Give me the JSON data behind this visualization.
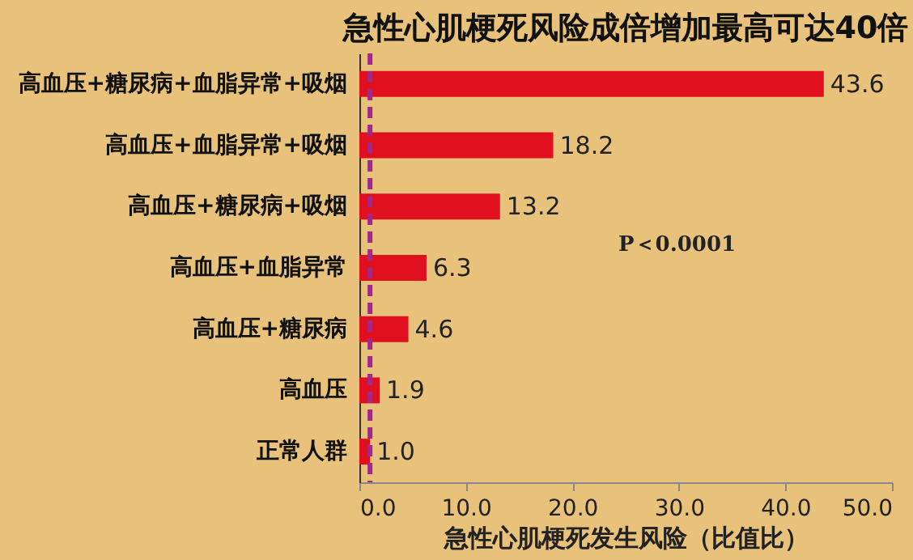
{
  "chart_data": {
    "type": "bar",
    "orientation": "horizontal",
    "title": "急性心肌梗死风险成倍增加最高可达40倍",
    "xlabel": "急性心肌梗死发生风险（比值比）",
    "categories": [
      "高血压+糖尿病+血脂异常+吸烟",
      "高血压+血脂异常+吸烟",
      "高血压+糖尿病+吸烟",
      "高血压+血脂异常",
      "高血压+糖尿病",
      "高血压",
      "正常人群"
    ],
    "values": [
      43.6,
      18.2,
      13.2,
      6.3,
      4.6,
      1.9,
      1.0
    ],
    "value_labels": [
      "43.6",
      "18.2",
      "13.2",
      "6.3",
      "4.6",
      "1.9",
      "1.0"
    ],
    "color": "#e0101e",
    "xlim": [
      0,
      50
    ],
    "xticks": [
      {
        "value": 0,
        "label": "0.0"
      },
      {
        "value": 10,
        "label": "10.0"
      },
      {
        "value": 20,
        "label": "20.0"
      },
      {
        "value": 30,
        "label": "30.0"
      },
      {
        "value": 40,
        "label": "40.0"
      },
      {
        "value": 50,
        "label": "50.0"
      }
    ],
    "ref_lines": [
      {
        "axis": "x",
        "value": 1,
        "label": null,
        "color": "#a0288c",
        "line_style": "dashed"
      }
    ],
    "annotations": [
      "P＜0.0001"
    ],
    "grid": false
  }
}
